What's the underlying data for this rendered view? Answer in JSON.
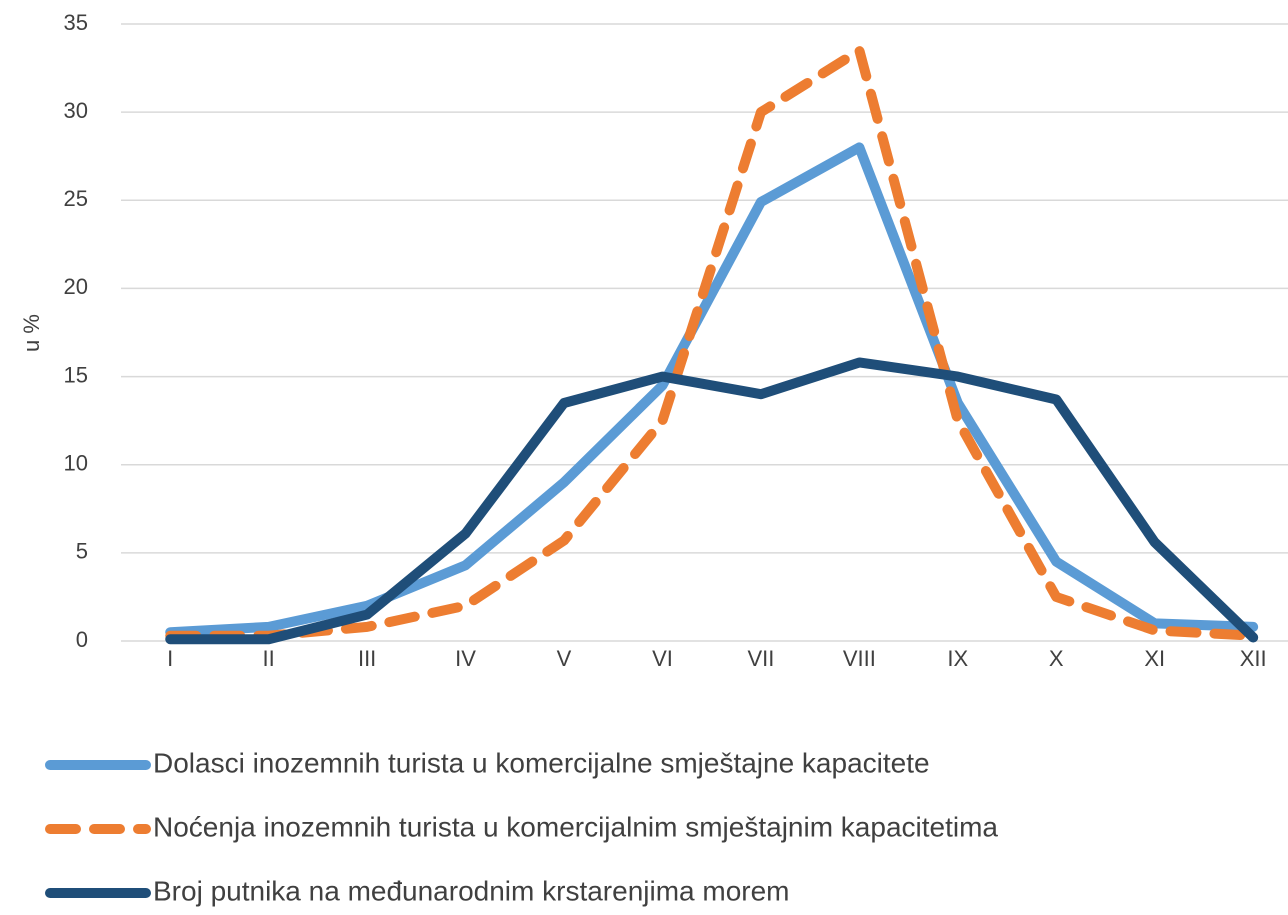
{
  "chart_data": {
    "type": "line",
    "ylabel": "u %",
    "categories": [
      "I",
      "II",
      "III",
      "IV",
      "V",
      "VI",
      "VII",
      "VIII",
      "IX",
      "X",
      "XI",
      "XII"
    ],
    "series": [
      {
        "name": "Dolasci inozemnih turista u komercijalne smještajne kapacitete",
        "color": "#5b9bd5",
        "line_style": "solid",
        "values": [
          0.5,
          0.8,
          2.0,
          4.3,
          9.0,
          14.5,
          24.9,
          28,
          13.5,
          4.5,
          1.0,
          0.8
        ]
      },
      {
        "name": "Noćenja inozemnih turista u komercijalnim smještajnim kapacitetima",
        "color": "#ed7d31",
        "line_style": "dashed",
        "values": [
          0.3,
          0.3,
          0.8,
          2.0,
          5.7,
          12.5,
          30,
          33.5,
          12.5,
          2.5,
          0.6,
          0.3
        ]
      },
      {
        "name": "Broj putnika na međunarodnim krstarenjima morem",
        "color": "#1f4e79",
        "line_style": "solid",
        "values": [
          0.1,
          0.1,
          1.5,
          6.1,
          13.5,
          15,
          14,
          15.8,
          15,
          13.7,
          5.6,
          0.2
        ]
      }
    ],
    "ylim": [
      0,
      35
    ],
    "yticks": [
      0,
      5,
      10,
      15,
      20,
      25,
      30,
      35
    ],
    "grid": true,
    "legend": "bottom"
  }
}
